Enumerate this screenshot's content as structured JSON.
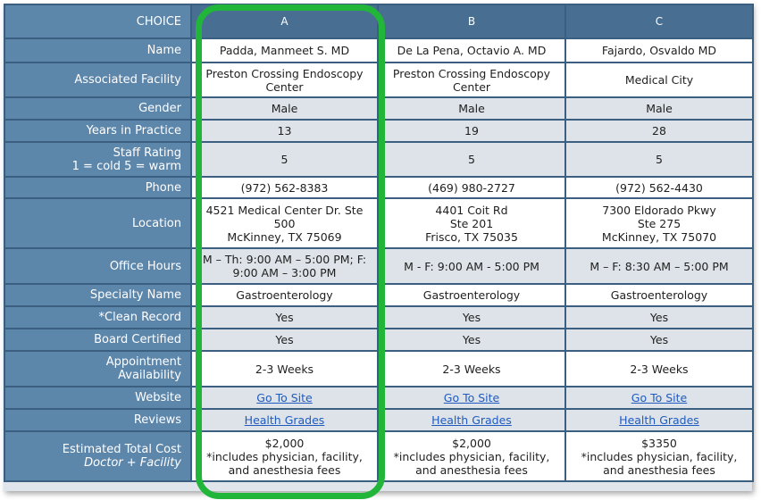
{
  "header": {
    "choice": "CHOICE",
    "a": "A",
    "b": "B",
    "c": "C"
  },
  "rows": {
    "name": {
      "label": "Name",
      "a": "Padda, Manmeet S. MD",
      "b": "De La Pena, Octavio A. MD",
      "c": "Fajardo, Osvaldo MD"
    },
    "facility": {
      "label": "Associated Facility",
      "a": [
        "Preston Crossing Endoscopy",
        "Center"
      ],
      "b": [
        "Preston Crossing Endoscopy",
        "Center"
      ],
      "c": "Medical City"
    },
    "gender": {
      "label": "Gender",
      "a": "Male",
      "b": "Male",
      "c": "Male"
    },
    "years": {
      "label": "Years in Practice",
      "a": "13",
      "b": "19",
      "c": "28"
    },
    "rating": {
      "label": [
        "Staff Rating",
        "1 = cold 5 = warm"
      ],
      "a": "5",
      "b": "5",
      "c": "5"
    },
    "phone": {
      "label": "Phone",
      "a": "(972) 562-8383",
      "b": "(469) 980-2727",
      "c": "(972) 562-4430"
    },
    "location": {
      "label": "Location",
      "a": [
        "4521 Medical Center Dr. Ste",
        "500",
        "McKinney, TX 75069"
      ],
      "b": [
        "4401 Coit Rd",
        "Ste 201",
        "Frisco, TX 75035"
      ],
      "c": [
        "7300 Eldorado Pkwy",
        "Ste 275",
        "McKinney, TX 75070"
      ]
    },
    "hours": {
      "label": "Office Hours",
      "a": [
        "M – Th: 9:00 AM – 5:00 PM; F:",
        "9:00 AM – 3:00 PM"
      ],
      "b": "M - F: 9:00 AM - 5:00 PM",
      "c": "M – F: 8:30 AM – 5:00 PM"
    },
    "specialty": {
      "label": "Specialty Name",
      "a": "Gastroenterology",
      "b": "Gastroenterology",
      "c": "Gastroenterology"
    },
    "clean": {
      "label": "*Clean Record",
      "a": "Yes",
      "b": "Yes",
      "c": "Yes"
    },
    "board": {
      "label": "Board Certified",
      "a": "Yes",
      "b": "Yes",
      "c": "Yes"
    },
    "appointment": {
      "label": [
        "Appointment",
        "Availability"
      ],
      "a": "2-3 Weeks",
      "b": "2-3 Weeks",
      "c": "2-3 Weeks"
    },
    "website": {
      "label": "Website",
      "a": "Go To Site",
      "b": "Go To Site",
      "c": "Go To Site"
    },
    "reviews": {
      "label": "Reviews",
      "a": "Health Grades",
      "b": "Health Grades",
      "c": "Health Grades"
    },
    "cost": {
      "label": [
        "Estimated Total Cost",
        "Doctor + Facility"
      ],
      "a": [
        "$2,000",
        "*includes physician, facility,",
        "and anesthesia fees"
      ],
      "b": [
        "$2,000",
        "*includes physician, facility,",
        "and anesthesia fees"
      ],
      "c": [
        "$3350",
        "*includes physician, facility,",
        "and anesthesia fees"
      ]
    }
  },
  "colors": {
    "header_bg": "#486f91",
    "label_bg": "#5d86ab",
    "highlight": "#21b53a",
    "link": "#1f5bbf"
  }
}
